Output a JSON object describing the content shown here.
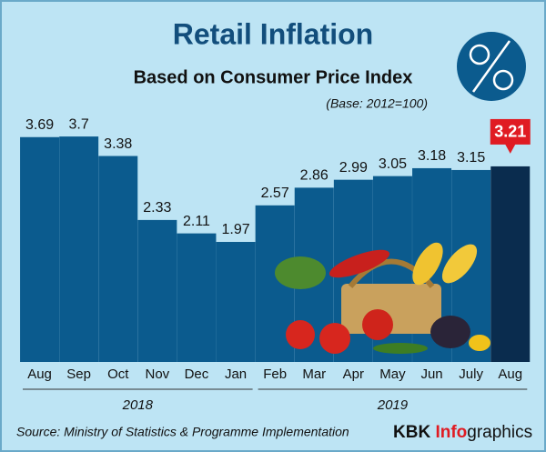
{
  "chart_data": {
    "type": "bar",
    "title": "Retail Inflation",
    "subtitle": "Based on Consumer Price Index",
    "note": "(Base: 2012=100)",
    "groups": [
      {
        "label": "2018",
        "categories": [
          "Aug",
          "Sep",
          "Oct",
          "Nov",
          "Dec",
          "Jan"
        ],
        "values": [
          3.69,
          3.7,
          3.38,
          2.33,
          2.11,
          1.97
        ],
        "colors": [
          "#0b5b8e",
          "#0b5b8e",
          "#0b5b8e",
          "#0b5b8e",
          "#0b5b8e",
          "#0b5b8e"
        ]
      },
      {
        "label": "2019",
        "categories": [
          "Feb",
          "Mar",
          "Apr",
          "May",
          "Jun",
          "July",
          "Aug"
        ],
        "values": [
          2.57,
          2.86,
          2.99,
          3.05,
          3.18,
          3.15,
          3.21
        ],
        "colors": [
          "#0b5b8e",
          "#0b5b8e",
          "#0b5b8e",
          "#0b5b8e",
          "#0b5b8e",
          "#0b5b8e",
          "#0a2c4e"
        ]
      }
    ],
    "ylim": [
      0,
      4
    ],
    "source": "Source: Ministry of Statistics & Programme Implementation",
    "brand": [
      "KBK",
      "Info",
      "graphics"
    ]
  }
}
